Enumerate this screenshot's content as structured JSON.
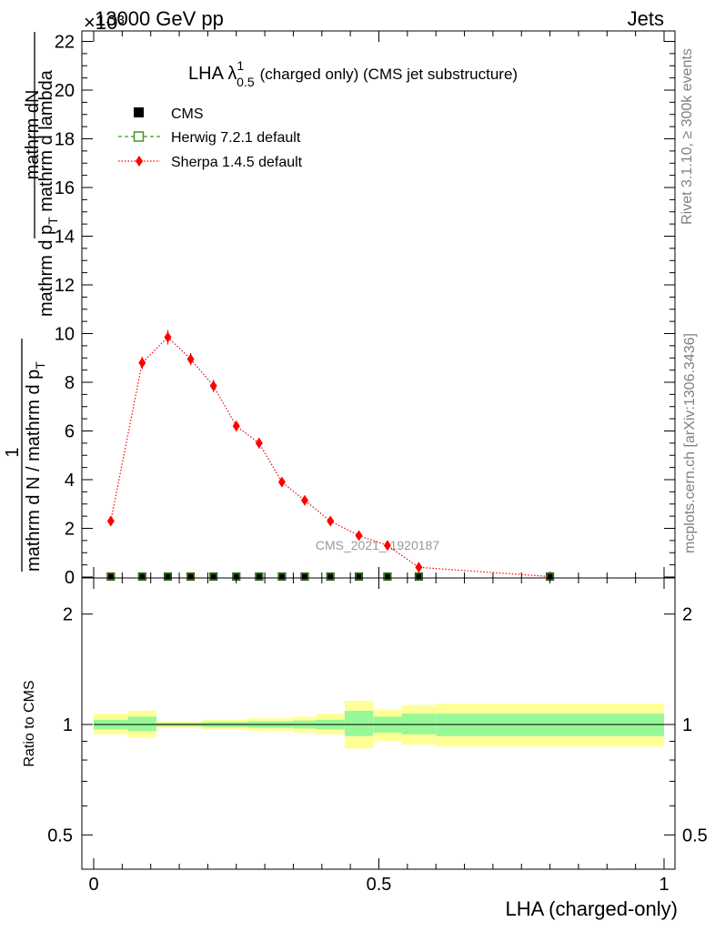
{
  "header": {
    "energy_label": "13000 GeV pp",
    "exponent_label": "×10³",
    "category_label": "Jets",
    "side_label_top": "Rivet 3.1.10, ≥ 300k events",
    "side_label_bottom": "mcplots.cern.ch [arXiv:1306.3436]",
    "watermark": "CMS_2021_I1920187"
  },
  "chart_data": [
    {
      "type": "line",
      "title_main": "LHA λ",
      "title_sup": "1",
      "title_sub": "0.5",
      "title_rest": "(charged only) (CMS jet substructure)",
      "ylabel_numerator": "mathrm dN",
      "ylabel_denominator": "mathrm d p",
      "ylabel_denominator_sub": "T",
      "ylabel_denominator_rest": " mathrm d lambda",
      "ylabel_prefactor_numerator": "1",
      "ylabel_prefactor_denominator": "mathrm d N / mathrm d p",
      "ylabel_prefactor_denominator_sub": "T",
      "ylim": [
        0,
        22.5
      ],
      "xlim": [
        -0.02,
        1.02
      ],
      "yticks": [
        "0",
        "2",
        "4",
        "6",
        "8",
        "10",
        "12",
        "14",
        "16",
        "18",
        "20",
        "22"
      ],
      "legend": [
        {
          "name": "CMS",
          "color": "#000000",
          "marker": "square"
        },
        {
          "name": "Herwig 7.2.1 default",
          "color": "#3a9a1a",
          "marker": "open-square"
        },
        {
          "name": "Sherpa 1.4.5 default",
          "color": "#ff0000",
          "marker": "diamond"
        }
      ],
      "series": [
        {
          "name": "CMS",
          "x": [
            0.03,
            0.085,
            0.13,
            0.17,
            0.21,
            0.25,
            0.29,
            0.33,
            0.37,
            0.415,
            0.465,
            0.515,
            0.57,
            0.8
          ],
          "values": [
            0.02,
            0.02,
            0.02,
            0.02,
            0.02,
            0.02,
            0.02,
            0.02,
            0.02,
            0.02,
            0.02,
            0.02,
            0.02,
            0.02
          ]
        },
        {
          "name": "Herwig 7.2.1 default",
          "x": [
            0.03,
            0.085,
            0.13,
            0.17,
            0.21,
            0.25,
            0.29,
            0.33,
            0.37,
            0.415,
            0.465,
            0.515,
            0.57,
            0.8
          ],
          "values": [
            0.02,
            0.02,
            0.02,
            0.02,
            0.02,
            0.02,
            0.02,
            0.02,
            0.02,
            0.02,
            0.02,
            0.02,
            0.02,
            0.02
          ]
        },
        {
          "name": "Sherpa 1.4.5 default",
          "x": [
            0.03,
            0.085,
            0.13,
            0.17,
            0.21,
            0.25,
            0.29,
            0.33,
            0.37,
            0.415,
            0.465,
            0.515,
            0.57,
            0.8
          ],
          "values": [
            2.3,
            8.8,
            9.85,
            8.95,
            7.85,
            6.2,
            5.5,
            3.9,
            3.15,
            2.3,
            1.7,
            1.3,
            0.4,
            0.02
          ],
          "errors": [
            0.2,
            0.25,
            0.3,
            0.25,
            0.25,
            0.22,
            0.22,
            0.18,
            0.15,
            0.12,
            0.1,
            0.1,
            0.08,
            0.02
          ]
        }
      ]
    },
    {
      "type": "area",
      "ylabel": "Ratio to CMS",
      "xlabel": "LHA (charged-only)",
      "log_y": true,
      "ylim": [
        0.4,
        2.5
      ],
      "xlim": [
        -0.02,
        1.02
      ],
      "yticks": [
        "0.5",
        "1",
        "2"
      ],
      "xticks": [
        "0",
        "0.5",
        "1"
      ],
      "band_colors": {
        "inner": "#98f898",
        "outer": "#ffff98"
      },
      "bins": [
        {
          "lo": 0.0,
          "hi": 0.06,
          "inner": [
            0.97,
            1.03
          ],
          "outer": [
            0.94,
            1.07
          ]
        },
        {
          "lo": 0.06,
          "hi": 0.11,
          "inner": [
            0.96,
            1.05
          ],
          "outer": [
            0.92,
            1.09
          ]
        },
        {
          "lo": 0.11,
          "hi": 0.15,
          "inner": [
            0.99,
            1.01
          ],
          "outer": [
            0.98,
            1.02
          ]
        },
        {
          "lo": 0.15,
          "hi": 0.19,
          "inner": [
            0.99,
            1.01
          ],
          "outer": [
            0.98,
            1.02
          ]
        },
        {
          "lo": 0.19,
          "hi": 0.23,
          "inner": [
            0.985,
            1.015
          ],
          "outer": [
            0.97,
            1.03
          ]
        },
        {
          "lo": 0.23,
          "hi": 0.27,
          "inner": [
            0.985,
            1.015
          ],
          "outer": [
            0.97,
            1.03
          ]
        },
        {
          "lo": 0.27,
          "hi": 0.31,
          "inner": [
            0.98,
            1.02
          ],
          "outer": [
            0.96,
            1.04
          ]
        },
        {
          "lo": 0.31,
          "hi": 0.35,
          "inner": [
            0.98,
            1.02
          ],
          "outer": [
            0.96,
            1.04
          ]
        },
        {
          "lo": 0.35,
          "hi": 0.39,
          "inner": [
            0.975,
            1.025
          ],
          "outer": [
            0.95,
            1.05
          ]
        },
        {
          "lo": 0.39,
          "hi": 0.44,
          "inner": [
            0.97,
            1.03
          ],
          "outer": [
            0.94,
            1.07
          ]
        },
        {
          "lo": 0.44,
          "hi": 0.49,
          "inner": [
            0.93,
            1.09
          ],
          "outer": [
            0.86,
            1.16
          ]
        },
        {
          "lo": 0.49,
          "hi": 0.54,
          "inner": [
            0.95,
            1.05
          ],
          "outer": [
            0.9,
            1.1
          ]
        },
        {
          "lo": 0.54,
          "hi": 0.6,
          "inner": [
            0.94,
            1.07
          ],
          "outer": [
            0.88,
            1.13
          ]
        },
        {
          "lo": 0.6,
          "hi": 1.0,
          "inner": [
            0.93,
            1.07
          ],
          "outer": [
            0.87,
            1.14
          ]
        }
      ]
    }
  ]
}
